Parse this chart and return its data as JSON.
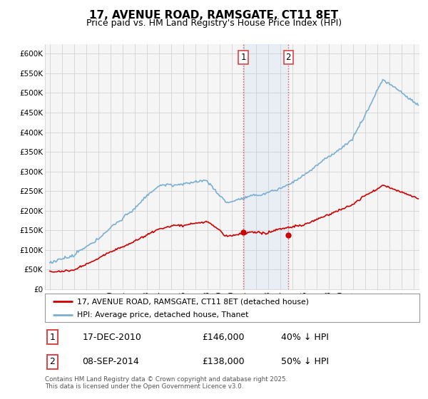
{
  "title": "17, AVENUE ROAD, RAMSGATE, CT11 8ET",
  "subtitle": "Price paid vs. HM Land Registry's House Price Index (HPI)",
  "ylabel_ticks": [
    "£0",
    "£50K",
    "£100K",
    "£150K",
    "£200K",
    "£250K",
    "£300K",
    "£350K",
    "£400K",
    "£450K",
    "£500K",
    "£550K",
    "£600K"
  ],
  "ytick_values": [
    0,
    50000,
    100000,
    150000,
    200000,
    250000,
    300000,
    350000,
    400000,
    450000,
    500000,
    550000,
    600000
  ],
  "ylim": [
    0,
    625000
  ],
  "xlim_start": 1994.6,
  "xlim_end": 2025.5,
  "legend_line1": "17, AVENUE ROAD, RAMSGATE, CT11 8ET (detached house)",
  "legend_line2": "HPI: Average price, detached house, Thanet",
  "sale1_label": "1",
  "sale1_date": "17-DEC-2010",
  "sale1_price": "£146,000",
  "sale1_hpi": "40% ↓ HPI",
  "sale2_label": "2",
  "sale2_date": "08-SEP-2014",
  "sale2_price": "£138,000",
  "sale2_hpi": "50% ↓ HPI",
  "footer": "Contains HM Land Registry data © Crown copyright and database right 2025.\nThis data is licensed under the Open Government Licence v3.0.",
  "hpi_color": "#7aafd4",
  "price_color": "#cc0000",
  "sale1_x": 2010.96,
  "sale2_x": 2014.69,
  "sale1_y": 146000,
  "sale2_y": 138000,
  "vline_color": "#dd4444",
  "shade_color": "#ddeeff",
  "bg_color": "#f5f5f5",
  "grid_color": "#cccccc",
  "title_fontsize": 11,
  "subtitle_fontsize": 9
}
